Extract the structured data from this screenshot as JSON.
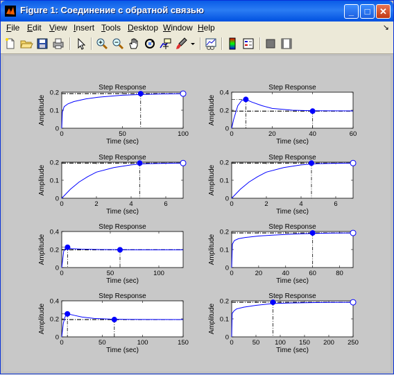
{
  "window": {
    "title": "Figure 1: Соединение с обратной связью",
    "minimize": "_",
    "maximize": "□",
    "close": "✕"
  },
  "menu": [
    {
      "label": "File",
      "u": "F",
      "rest": "ile"
    },
    {
      "label": "Edit",
      "u": "E",
      "rest": "dit"
    },
    {
      "label": "View",
      "u": "V",
      "rest": "iew"
    },
    {
      "label": "Insert",
      "u": "I",
      "rest": "nsert"
    },
    {
      "label": "Tools",
      "u": "T",
      "rest": "ools"
    },
    {
      "label": "Desktop",
      "u": "D",
      "rest": "esktop"
    },
    {
      "label": "Window",
      "u": "W",
      "rest": "indow"
    },
    {
      "label": "Help",
      "u": "H",
      "rest": "elp"
    }
  ],
  "menu_arrow": "↘",
  "toolbar": [
    "new-file-icon",
    "open-folder-icon",
    "save-icon",
    "print-icon",
    "pointer-icon",
    "zoom-in-icon",
    "zoom-out-icon",
    "pan-hand-icon",
    "rotate-3d-icon",
    "data-cursor-icon",
    "brush-icon",
    "brush-dropdown-icon",
    "link-plot-icon",
    "colorbar-icon",
    "legend-icon",
    "hide-plot-tools-icon",
    "show-plot-tools-icon"
  ],
  "colors": {
    "curve": "#0000ff",
    "marker": "#0000ff",
    "accent": "#0a5ce7"
  },
  "chart_data": [
    {
      "type": "line",
      "title": "Step Response",
      "xlabel": "Time (sec)",
      "ylabel": "Amplitude",
      "xlim": [
        0,
        100
      ],
      "ylim": [
        0,
        0.2
      ],
      "xticks": [
        "0",
        "50",
        "100"
      ],
      "yticks": [
        "0",
        "0.1",
        "0.2"
      ],
      "x": [
        0,
        0.5,
        2,
        5,
        10,
        20,
        30,
        40,
        50,
        65,
        80,
        100
      ],
      "y": [
        0,
        0.09,
        0.12,
        0.135,
        0.148,
        0.163,
        0.172,
        0.178,
        0.183,
        0.187,
        0.19,
        0.192
      ],
      "final_value": 0.192,
      "settling_time": 65,
      "end_marker": [
        100,
        0.192
      ]
    },
    {
      "type": "line",
      "title": "Step Response",
      "xlabel": "Time (sec)",
      "ylabel": "Amplitude",
      "xlim": [
        0,
        60
      ],
      "ylim": [
        0,
        0.4
      ],
      "xticks": [
        "0",
        "20",
        "40",
        "60"
      ],
      "yticks": [
        "0",
        "0.2",
        "0.4"
      ],
      "x": [
        0,
        1,
        3,
        5,
        7,
        10,
        15,
        20,
        30,
        40,
        50,
        60
      ],
      "y": [
        0,
        0.1,
        0.25,
        0.31,
        0.32,
        0.29,
        0.25,
        0.22,
        0.2,
        0.195,
        0.193,
        0.192
      ],
      "final_value": 0.19,
      "peak": [
        7,
        0.32
      ],
      "settling_time": 40
    },
    {
      "type": "line",
      "title": "Step Response",
      "xlabel": "Time (sec)",
      "ylabel": "Amplitude",
      "xlim": [
        0,
        7
      ],
      "ylim": [
        0,
        0.2
      ],
      "xticks": [
        "0",
        "2",
        "4",
        "6"
      ],
      "yticks": [
        "0",
        "0.1",
        "0.2"
      ],
      "x": [
        0,
        0.5,
        1,
        1.5,
        2,
        3,
        4,
        4.5,
        5,
        6,
        7
      ],
      "y": [
        0,
        0.05,
        0.09,
        0.12,
        0.145,
        0.17,
        0.185,
        0.19,
        0.192,
        0.194,
        0.195
      ],
      "final_value": 0.195,
      "settling_time": 4.5,
      "end_marker": [
        7,
        0.195
      ]
    },
    {
      "type": "line",
      "title": "Step Response",
      "xlabel": "Time (sec)",
      "ylabel": "Amplitude",
      "xlim": [
        0,
        7
      ],
      "ylim": [
        0,
        0.2
      ],
      "xticks": [
        "0",
        "2",
        "4",
        "6"
      ],
      "yticks": [
        "0",
        "0.1",
        "0.2"
      ],
      "x": [
        0,
        0.5,
        1,
        1.5,
        2,
        3,
        4,
        4.6,
        5,
        6,
        7
      ],
      "y": [
        0,
        0.05,
        0.09,
        0.12,
        0.145,
        0.17,
        0.185,
        0.19,
        0.192,
        0.194,
        0.195
      ],
      "final_value": 0.195,
      "settling_time": 4.6,
      "end_marker": [
        7,
        0.195
      ]
    },
    {
      "type": "line",
      "title": "Step Response",
      "xlabel": "Time (sec)",
      "ylabel": "Amplitude",
      "xlim": [
        0,
        125
      ],
      "ylim": [
        0,
        0.4
      ],
      "xticks": [
        "0",
        "50",
        "100"
      ],
      "yticks": [
        "0",
        "0.2",
        "0.4"
      ],
      "x": [
        0,
        2,
        4,
        6,
        10,
        20,
        40,
        60,
        80,
        100,
        125
      ],
      "y": [
        0,
        0.18,
        0.22,
        0.22,
        0.21,
        0.205,
        0.2,
        0.198,
        0.197,
        0.197,
        0.197
      ],
      "final_value": 0.197,
      "peak": [
        6,
        0.225
      ],
      "settling_time": 60
    },
    {
      "type": "line",
      "title": "Step Response",
      "xlabel": "Time (sec)",
      "ylabel": "Amplitude",
      "xlim": [
        0,
        90
      ],
      "ylim": [
        0,
        0.2
      ],
      "xticks": [
        "0",
        "20",
        "40",
        "60",
        "80"
      ],
      "yticks": [
        "0",
        "0.1",
        "0.2"
      ],
      "x": [
        0,
        0.5,
        2,
        5,
        10,
        20,
        30,
        40,
        50,
        60,
        75,
        90
      ],
      "y": [
        0,
        0.13,
        0.15,
        0.16,
        0.167,
        0.175,
        0.18,
        0.184,
        0.187,
        0.189,
        0.191,
        0.192
      ],
      "final_value": 0.192,
      "settling_time": 60,
      "end_marker": [
        90,
        0.192
      ]
    },
    {
      "type": "line",
      "title": "Step Response",
      "xlabel": "Time (sec)",
      "ylabel": "Amplitude",
      "xlim": [
        0,
        150
      ],
      "ylim": [
        0,
        0.4
      ],
      "xticks": [
        "0",
        "50",
        "100",
        "150"
      ],
      "yticks": [
        "0",
        "0.2",
        "0.4"
      ],
      "x": [
        0,
        2,
        4,
        6,
        8,
        15,
        25,
        40,
        60,
        80,
        100,
        150
      ],
      "y": [
        0,
        0.15,
        0.22,
        0.25,
        0.255,
        0.24,
        0.22,
        0.205,
        0.197,
        0.194,
        0.193,
        0.192
      ],
      "final_value": 0.192,
      "peak": [
        7,
        0.255
      ],
      "settling_time": 65
    },
    {
      "type": "line",
      "title": "Step Response",
      "xlabel": "Time (sec)",
      "ylabel": "Amplitude",
      "xlim": [
        0,
        250
      ],
      "ylim": [
        0,
        0.2
      ],
      "xticks": [
        "0",
        "50",
        "100",
        "150",
        "200",
        "250"
      ],
      "yticks": [
        "0",
        "0.1",
        "0.2"
      ],
      "x": [
        0,
        1,
        5,
        10,
        25,
        50,
        85,
        120,
        160,
        200,
        250
      ],
      "y": [
        0,
        0.13,
        0.145,
        0.155,
        0.165,
        0.175,
        0.185,
        0.188,
        0.19,
        0.191,
        0.192
      ],
      "final_value": 0.192,
      "settling_time": 85,
      "end_marker": [
        250,
        0.192
      ]
    }
  ]
}
